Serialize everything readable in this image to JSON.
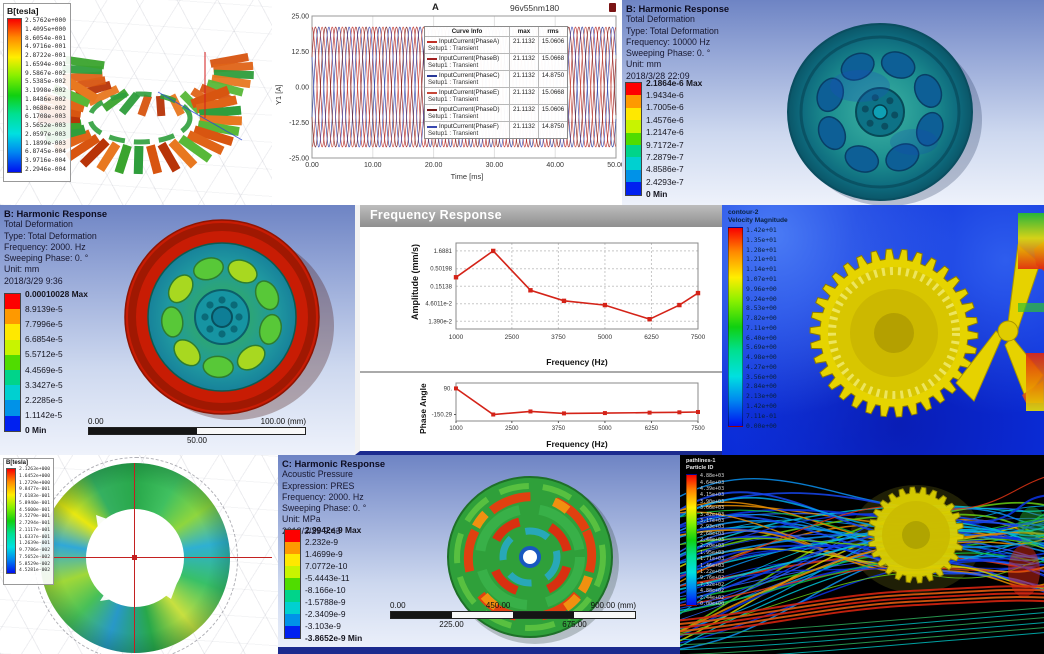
{
  "panel_torus": {
    "legend_title": "B[tesla]",
    "legend_values": [
      "2.5762e+000",
      "1.4095e+000",
      "8.6054e-001",
      "4.9716e-001",
      "2.8722e-001",
      "1.6594e-001",
      "9.5867e-002",
      "5.5385e-002",
      "3.1998e-002",
      "1.8486e-002",
      "1.0680e-002",
      "6.1708e-003",
      "3.5652e-003",
      "2.0597e-003",
      "1.1899e-003",
      "6.8745e-004",
      "3.9716e-004",
      "2.2946e-004"
    ]
  },
  "panel_wheel_teal": {
    "info": [
      "B: Harmonic Response",
      "Total Deformation",
      "Type: Total Deformation",
      "Frequency: 10000 Hz",
      "Sweeping Phase: 0. °",
      "Unit: mm",
      "2018/3/28 22:09"
    ],
    "legend_values": [
      "2.1864e-6 Max",
      "1.9434e-6",
      "1.7005e-6",
      "1.4576e-6",
      "1.2147e-6",
      "9.7172e-7",
      "7.2879e-7",
      "4.8586e-7",
      "2.4293e-7",
      "0 Min"
    ]
  },
  "panel_wheel_red": {
    "info": [
      "B: Harmonic Response",
      "Total Deformation",
      "Type: Total Deformation",
      "Frequency: 2000. Hz",
      "Sweeping Phase: 0. °",
      "Unit: mm",
      "2018/3/29 9:36"
    ],
    "legend_values": [
      "0.00010028 Max",
      "8.9139e-5",
      "7.7996e-5",
      "6.6854e-5",
      "5.5712e-5",
      "4.4569e-5",
      "3.3427e-5",
      "2.2285e-5",
      "1.1142e-5",
      "0 Min"
    ],
    "scalebar": {
      "top": [
        "0.00",
        "100.00 (mm)"
      ],
      "bottom": [
        "50.00"
      ]
    }
  },
  "panel_freq_response": {
    "window_title": "Frequency Response"
  },
  "panel_cfd": {
    "legend_title_lines": [
      "contour-2",
      "Velocity Magnitude"
    ],
    "legend_values": [
      "1.42e+01",
      "1.35e+01",
      "1.28e+01",
      "1.21e+01",
      "1.14e+01",
      "1.07e+01",
      "9.96e+00",
      "9.24e+00",
      "8.53e+00",
      "7.82e+00",
      "7.11e+00",
      "6.40e+00",
      "5.69e+00",
      "4.98e+00",
      "4.27e+00",
      "3.56e+00",
      "2.84e+00",
      "2.13e+00",
      "1.42e+00",
      "7.11e-01",
      "0.00e+00"
    ]
  },
  "panel_stator": {
    "legend_title": "B[tesla]",
    "legend_values": [
      "2.1263e+000",
      "1.6452e+000",
      "1.2729e+000",
      "9.8477e-001",
      "7.6183e-001",
      "5.8940e-001",
      "4.5600e-001",
      "3.5279e-001",
      "2.7294e-001",
      "2.1117e-001",
      "1.6337e-001",
      "1.2639e-001",
      "9.7786e-002",
      "7.5652e-002",
      "5.8529e-002",
      "4.5281e-002"
    ]
  },
  "panel_acoustic": {
    "info": [
      "C: Harmonic Response",
      "Acoustic Pressure",
      "Expression: PRES",
      "Frequency: 2000. Hz",
      "Sweeping Phase: 0. °",
      "Unit: MPa",
      "2018/3/29 9:43"
    ],
    "legend_values": [
      "2.9942e-9 Max",
      "2.232e-9",
      "1.4699e-9",
      "7.0772e-10",
      "-5.4443e-11",
      "-8.166e-10",
      "-1.5788e-9",
      "-2.3409e-9",
      "-3.103e-9",
      "-3.8652e-9 Min"
    ],
    "scalebar": {
      "top": [
        "0.00",
        "450.00",
        "900.00 (mm)"
      ],
      "bottom": [
        "225.00",
        "675.00"
      ]
    }
  },
  "panel_streamlines": {
    "legend_title_lines": [
      "pathlines-1",
      "Particle ID"
    ],
    "legend_values": [
      "4.88e+03",
      "4.64e+03",
      "4.39e+03",
      "4.15e+03",
      "3.90e+03",
      "3.66e+03",
      "3.42e+03",
      "3.17e+03",
      "2.93e+03",
      "2.68e+03",
      "2.44e+03",
      "2.20e+03",
      "1.95e+03",
      "1.71e+03",
      "1.46e+03",
      "1.22e+03",
      "9.76e+02",
      "7.32e+02",
      "4.88e+02",
      "2.44e+02",
      "0.00e+00"
    ]
  },
  "colors": {
    "ansys_legend": [
      "#fe0000",
      "#fe9900",
      "#ffe800",
      "#c8f400",
      "#50dc00",
      "#00d48a",
      "#00d0d0",
      "#0092e8",
      "#0020f0"
    ],
    "accent_red": "#d42318"
  },
  "chart_data": [
    {
      "type": "line",
      "title": "A",
      "subtitle": "96v55nm180",
      "xlabel": "Time [ms]",
      "ylabel": "Y1 [A]",
      "xlim": [
        0,
        50
      ],
      "ylim": [
        -25,
        25
      ],
      "x_ticks": [
        "0.00",
        "10.00",
        "20.00",
        "30.00",
        "40.00",
        "50.00"
      ],
      "x_tick_vals": [
        0,
        10,
        20,
        30,
        40,
        50
      ],
      "y_ticks": [
        "25.00",
        "12.50",
        "0.00",
        "-12.50",
        "-25.00"
      ],
      "y_tick_vals": [
        25,
        12.5,
        0,
        -12.5,
        -25
      ],
      "grid": true,
      "legend_position": "top-right",
      "table_headers": [
        "Curve Info",
        "max",
        "rms"
      ],
      "waveform": {
        "amplitude": 21.1132,
        "period_ms": 3.3333
      },
      "series": [
        {
          "name": "InputCurrent(PhaseA)",
          "setup": "Setup1 : Transient",
          "max": "21.1132",
          "rms": "15.0606",
          "phase_deg": 90,
          "color": "#c03028"
        },
        {
          "name": "InputCurrent(PhaseB)",
          "setup": "Setup1 : Transient",
          "max": "21.1132",
          "rms": "15.0668",
          "phase_deg": 30,
          "color": "#a02020"
        },
        {
          "name": "InputCurrent(PhaseC)",
          "setup": "Setup1 : Transient",
          "max": "21.1132",
          "rms": "14.8750",
          "phase_deg": -30,
          "color": "#283898"
        },
        {
          "name": "InputCurrent(PhaseE)",
          "setup": "Setup1 : Transient",
          "max": "21.1132",
          "rms": "15.0668",
          "phase_deg": -90,
          "color": "#c84838"
        },
        {
          "name": "InputCurrent(PhaseD)",
          "setup": "Setup1 : Transient",
          "max": "21.1132",
          "rms": "15.0606",
          "phase_deg": -150,
          "color": "#781818"
        },
        {
          "name": "InputCurrent(PhaseF)",
          "setup": "Setup1 : Transient",
          "max": "21.1132",
          "rms": "14.8750",
          "phase_deg": -210,
          "color": "#3848b0"
        }
      ]
    },
    {
      "type": "line",
      "name": "amplitude_response",
      "ylabel": "Amplitude (mm/s)",
      "xlabel": "Frequency (Hz)",
      "yscale": "log",
      "x": [
        1000,
        2000,
        3000,
        3900,
        5000,
        6200,
        7000,
        7500
      ],
      "y": [
        0.28,
        1.6881,
        0.115,
        0.056,
        0.042,
        0.016,
        0.042,
        0.095
      ],
      "x_ticks": [
        "1000",
        "2500",
        "3750",
        "5000",
        "6250",
        "7500"
      ],
      "x_tick_vals": [
        1000,
        2500,
        3750,
        5000,
        6250,
        7500
      ],
      "y_ticks": [
        "1.6881",
        "0.50198",
        "0.15138",
        "4.6011e-2",
        "1.390e-2"
      ],
      "y_tick_vals": [
        1.6881,
        0.50198,
        0.15138,
        0.046011,
        0.0139
      ],
      "xlim": [
        1000,
        7500
      ],
      "color": "#d42318",
      "marker": "square",
      "grid": true
    },
    {
      "type": "line",
      "name": "phase_response",
      "ylabel": "Phase Angle",
      "xlabel": "Frequency (Hz)",
      "x": [
        1000,
        2000,
        3000,
        3900,
        5000,
        6200,
        7000,
        7500
      ],
      "y": [
        90,
        -150.29,
        -122,
        -140,
        -137,
        -133,
        -130,
        -127
      ],
      "x_ticks": [
        "1000",
        "2500",
        "3750",
        "5000",
        "6250",
        "7500"
      ],
      "x_tick_vals": [
        1000,
        2500,
        3750,
        5000,
        6250,
        7500
      ],
      "y_ticks": [
        "90.",
        "-150.29"
      ],
      "y_tick_vals": [
        90,
        -150.29
      ],
      "ylim": [
        -210,
        140
      ],
      "xlim": [
        1000,
        7500
      ],
      "color": "#d42318",
      "marker": "square"
    }
  ]
}
